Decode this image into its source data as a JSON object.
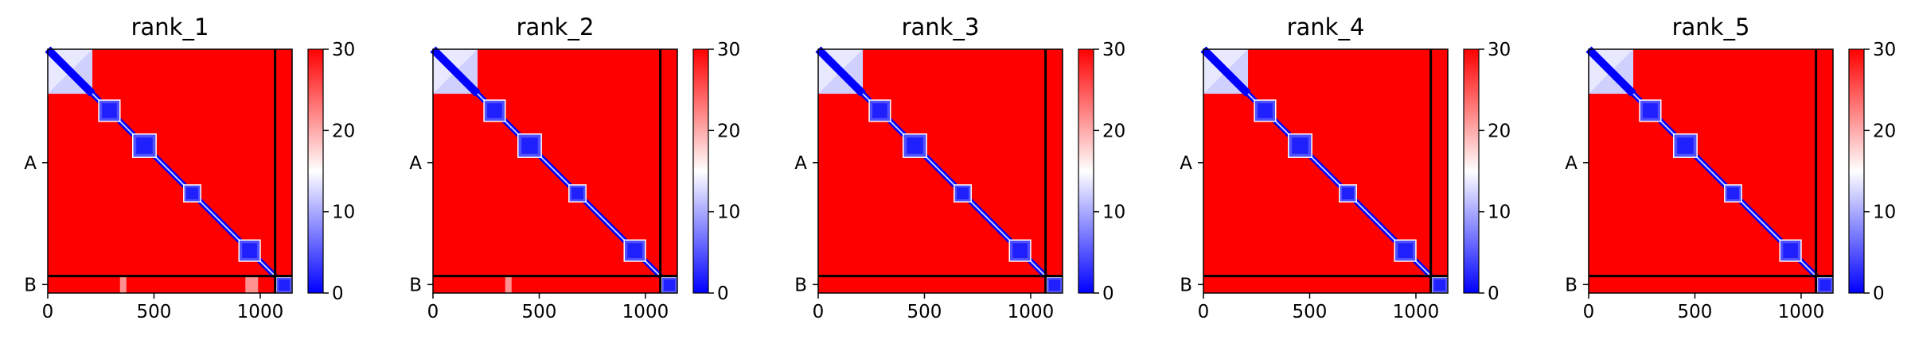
{
  "colors": {
    "high": "#ff0000",
    "mid": "#ffffff",
    "low": "#0000ff",
    "divider": "#000000"
  },
  "chart_data": [
    {
      "type": "heatmap",
      "title": "rank_1",
      "xlim": [
        0,
        1150
      ],
      "xticks": [
        0,
        500,
        1000
      ],
      "y_chain_labels": [
        "A",
        "B"
      ],
      "chain_boundary": 1070,
      "colorbar": {
        "min": 0,
        "max": 30,
        "ticks": [
          0,
          10,
          20,
          30
        ],
        "colormap": "bwr"
      },
      "diagonal_blocks": [
        [
          0,
          210
        ],
        [
          240,
          340
        ],
        [
          400,
          510
        ],
        [
          640,
          720
        ],
        [
          900,
          1000
        ],
        [
          1075,
          1150
        ]
      ],
      "off_diagonal_stripes": [
        [
          340,
          370
        ],
        [
          930,
          990
        ]
      ]
    },
    {
      "type": "heatmap",
      "title": "rank_2",
      "xlim": [
        0,
        1150
      ],
      "xticks": [
        0,
        500,
        1000
      ],
      "y_chain_labels": [
        "A",
        "B"
      ],
      "chain_boundary": 1070,
      "colorbar": {
        "min": 0,
        "max": 30,
        "ticks": [
          0,
          10,
          20,
          30
        ],
        "colormap": "bwr"
      },
      "diagonal_blocks": [
        [
          0,
          210
        ],
        [
          240,
          340
        ],
        [
          400,
          510
        ],
        [
          640,
          720
        ],
        [
          900,
          1000
        ],
        [
          1075,
          1150
        ]
      ],
      "off_diagonal_stripes": [
        [
          340,
          370
        ]
      ]
    },
    {
      "type": "heatmap",
      "title": "rank_3",
      "xlim": [
        0,
        1150
      ],
      "xticks": [
        0,
        500,
        1000
      ],
      "y_chain_labels": [
        "A",
        "B"
      ],
      "chain_boundary": 1070,
      "colorbar": {
        "min": 0,
        "max": 30,
        "ticks": [
          0,
          10,
          20,
          30
        ],
        "colormap": "bwr"
      },
      "diagonal_blocks": [
        [
          0,
          210
        ],
        [
          240,
          340
        ],
        [
          400,
          510
        ],
        [
          640,
          720
        ],
        [
          900,
          1000
        ],
        [
          1075,
          1150
        ]
      ],
      "off_diagonal_stripes": []
    },
    {
      "type": "heatmap",
      "title": "rank_4",
      "xlim": [
        0,
        1150
      ],
      "xticks": [
        0,
        500,
        1000
      ],
      "y_chain_labels": [
        "A",
        "B"
      ],
      "chain_boundary": 1070,
      "colorbar": {
        "min": 0,
        "max": 30,
        "ticks": [
          0,
          10,
          20,
          30
        ],
        "colormap": "bwr"
      },
      "diagonal_blocks": [
        [
          0,
          210
        ],
        [
          240,
          340
        ],
        [
          400,
          510
        ],
        [
          640,
          720
        ],
        [
          900,
          1000
        ],
        [
          1075,
          1150
        ]
      ],
      "off_diagonal_stripes": []
    },
    {
      "type": "heatmap",
      "title": "rank_5",
      "xlim": [
        0,
        1150
      ],
      "xticks": [
        0,
        500,
        1000
      ],
      "y_chain_labels": [
        "A",
        "B"
      ],
      "chain_boundary": 1070,
      "colorbar": {
        "min": 0,
        "max": 30,
        "ticks": [
          0,
          10,
          20,
          30
        ],
        "colormap": "bwr"
      },
      "diagonal_blocks": [
        [
          0,
          210
        ],
        [
          240,
          340
        ],
        [
          400,
          510
        ],
        [
          640,
          720
        ],
        [
          900,
          1000
        ],
        [
          1075,
          1150
        ]
      ],
      "off_diagonal_stripes": []
    }
  ]
}
